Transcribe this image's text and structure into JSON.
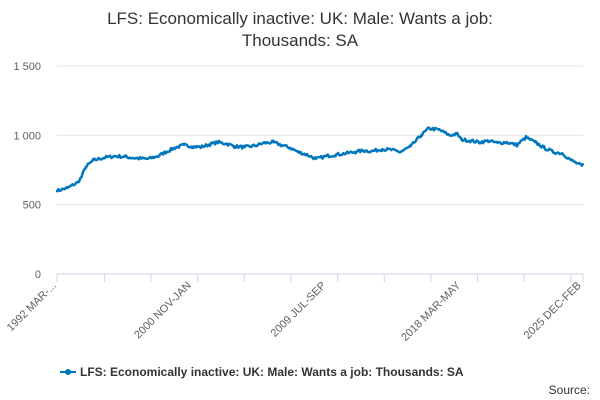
{
  "chart_data": {
    "type": "line",
    "title": [
      "LFS: Economically inactive: UK: Male: Wants a job:",
      "Thousands: SA"
    ],
    "xlabel": "",
    "ylabel": "",
    "ylim": [
      0,
      1500
    ],
    "y_ticks": [
      0,
      500,
      1000,
      1500
    ],
    "y_tick_labels": [
      "0",
      "500",
      "1 000",
      "1 500"
    ],
    "x_range": [
      "1992 MAR-MAY",
      "2026 JAN-MAR"
    ],
    "x_tick_labels": [
      "1992 MAR-...",
      "2000 NOV-JAN",
      "2009 JUL-SEP",
      "2018 MAR-MAY",
      "2025 DEC-FEB"
    ],
    "x_label_positions": [
      "1992 MAR-MAY",
      "2000 NOV-JAN",
      "2009 JUL-SEP",
      "2018 MAR-MAY",
      "2025 DEC-FEB"
    ],
    "grid": true,
    "legend_position": "bottom",
    "colors": {
      "series": "#0077bd",
      "grid": "#e6e6e6",
      "axis": "#ccd6eb"
    },
    "series": [
      {
        "name": "LFS: Economically inactive: UK: Male: Wants a job: Thousands: SA",
        "points": [
          [
            "1992 MAR-MAY",
            600
          ],
          [
            "1992 NOV-JAN",
            620
          ],
          [
            "1993 JUL-SEP",
            660
          ],
          [
            "1993 OCT-DEC",
            700
          ],
          [
            "1994 JAN-MAR",
            770
          ],
          [
            "1994 JUL-SEP",
            820
          ],
          [
            "1995 APR-JUN",
            840
          ],
          [
            "1995 DEC-FEB",
            850
          ],
          [
            "1996 AUG-OCT",
            845
          ],
          [
            "1997 APR-JUN",
            835
          ],
          [
            "1998 JAN-MAR",
            830
          ],
          [
            "1998 SEP-NOV",
            850
          ],
          [
            "1999 MAR-MAY",
            880
          ],
          [
            "1999 OCT-DEC",
            910
          ],
          [
            "2000 MAY-JUL",
            930
          ],
          [
            "2000 NOV-JAN",
            920
          ],
          [
            "2001 JUN-AUG",
            915
          ],
          [
            "2002 JAN-MAR",
            935
          ],
          [
            "2002 JUL-SEP",
            950
          ],
          [
            "2003 FEB-APR",
            940
          ],
          [
            "2003 AUG-OCT",
            920
          ],
          [
            "2004 APR-JUN",
            915
          ],
          [
            "2004 DEC-FEB",
            925
          ],
          [
            "2005 JUL-SEP",
            945
          ],
          [
            "2006 FEB-APR",
            950
          ],
          [
            "2006 AUG-OCT",
            930
          ],
          [
            "2007 MAR-MAY",
            910
          ],
          [
            "2007 SEP-NOV",
            880
          ],
          [
            "2008 APR-JUN",
            860
          ],
          [
            "2008 NOV-JAN",
            830
          ],
          [
            "2009 JUL-SEP",
            850
          ],
          [
            "2010 FEB-APR",
            860
          ],
          [
            "2010 OCT-DEC",
            870
          ],
          [
            "2011 MAY-JUL",
            880
          ],
          [
            "2011 DEC-FEB",
            890
          ],
          [
            "2012 JUN-AUG",
            885
          ],
          [
            "2013 FEB-APR",
            900
          ],
          [
            "2013 SEP-NOV",
            895
          ],
          [
            "2014 APR-JUN",
            880
          ],
          [
            "2014 DEC-FEB",
            920
          ],
          [
            "2015 AUG-OCT",
            1000
          ],
          [
            "2016 FEB-APR",
            1050
          ],
          [
            "2016 OCT-DEC",
            1040
          ],
          [
            "2017 JUN-AUG",
            1000
          ],
          [
            "2017 DEC-FEB",
            1010
          ],
          [
            "2018 MAR-MAY",
            970
          ],
          [
            "2018 NOV-JAN",
            960
          ],
          [
            "2019 MAY-JUL",
            950
          ],
          [
            "2019 DEC-FEB",
            960
          ],
          [
            "2020 JUL-SEP",
            945
          ],
          [
            "2021 FEB-APR",
            950
          ],
          [
            "2021 OCT-DEC",
            930
          ],
          [
            "2022 MAY-JUL",
            985
          ],
          [
            "2022 DEC-FEB",
            950
          ],
          [
            "2023 JUL-SEP",
            910
          ],
          [
            "2024 FEB-APR",
            880
          ],
          [
            "2024 SEP-NOV",
            870
          ],
          [
            "2025 APR-JUN",
            820
          ],
          [
            "2025 DEC-FEB",
            780
          ],
          [
            "2026 JAN-MAR",
            790
          ]
        ]
      }
    ],
    "credits": "Source:"
  }
}
